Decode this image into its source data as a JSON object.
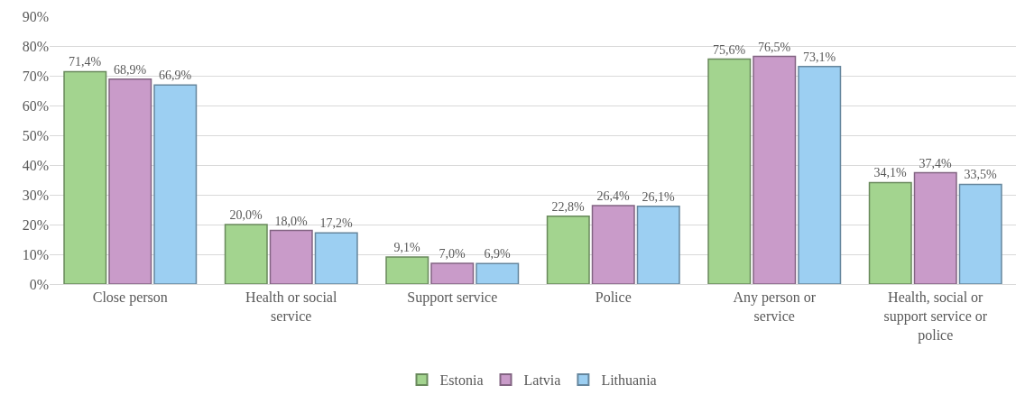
{
  "chart_data": {
    "type": "bar",
    "categories": [
      "Close person",
      "Health or social service",
      "Support service",
      "Police",
      "Any person or service",
      "Health, social or support service or police"
    ],
    "series": [
      {
        "name": "Estonia",
        "color": "#a3d48f",
        "values": [
          71.4,
          20.0,
          9.1,
          22.8,
          75.6,
          34.1
        ],
        "value_labels": [
          "71,4%",
          "20,0%",
          "9,1%",
          "22,8%",
          "75,6%",
          "34,1%"
        ]
      },
      {
        "name": "Latvia",
        "color": "#c99bc9",
        "values": [
          68.9,
          18.0,
          7.0,
          26.4,
          76.5,
          37.4
        ],
        "value_labels": [
          "68,9%",
          "18,0%",
          "7,0%",
          "26,4%",
          "76,5%",
          "37,4%"
        ]
      },
      {
        "name": "Lithuania",
        "color": "#9ccff2",
        "values": [
          66.9,
          17.2,
          6.9,
          26.1,
          73.1,
          33.5
        ],
        "value_labels": [
          "66,9%",
          "17,2%",
          "6,9%",
          "26,1%",
          "73,1%",
          "33,5%"
        ]
      }
    ],
    "ylim": [
      0,
      90
    ],
    "yticks": [
      {
        "value": 0,
        "label": "0%"
      },
      {
        "value": 10,
        "label": "10%"
      },
      {
        "value": 20,
        "label": "20%"
      },
      {
        "value": 30,
        "label": "30%"
      },
      {
        "value": 40,
        "label": "40%"
      },
      {
        "value": 50,
        "label": "50%"
      },
      {
        "value": 60,
        "label": "60%"
      },
      {
        "value": 70,
        "label": "70%"
      },
      {
        "value": 80,
        "label": "80%"
      },
      {
        "value": 90,
        "label": "90%"
      }
    ],
    "grid": "y",
    "legend": "bottom"
  }
}
